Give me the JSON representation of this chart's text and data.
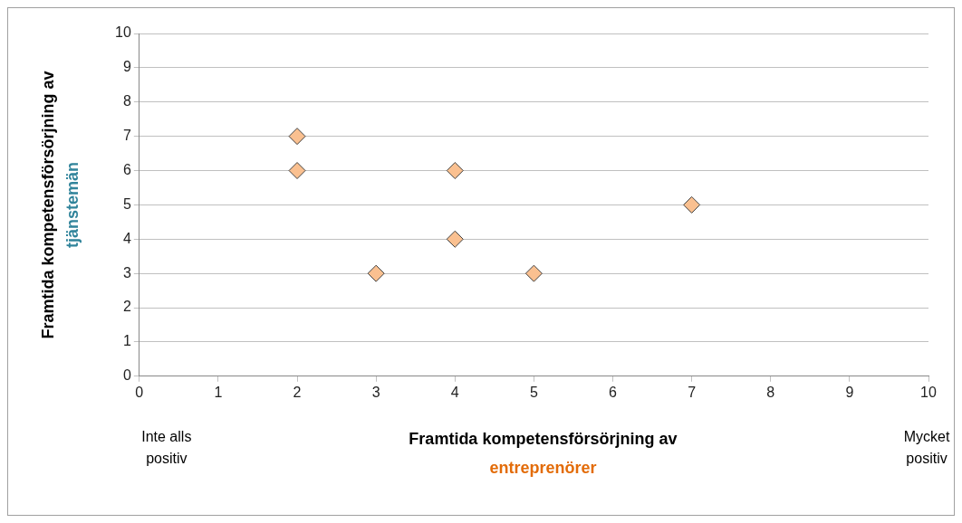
{
  "chart_data": {
    "type": "scatter",
    "xlabel": "Framtida kompetensförsörjning av entreprenörer",
    "ylabel": "Framtida kompetensförsörjning av tjänstemän",
    "annotations": [
      "Inte alls positiv",
      "Mycket positiv"
    ],
    "x": [
      2,
      2,
      4,
      4,
      3,
      5,
      7
    ],
    "series": [
      {
        "color": "#fac090",
        "values": [
          7,
          6,
          6,
          4,
          3,
          3,
          5
        ]
      }
    ],
    "xlim": [
      0,
      10
    ],
    "ylim": [
      0,
      10
    ],
    "xticks": [
      0,
      1,
      2,
      3,
      4,
      5,
      6,
      7,
      8,
      9,
      10
    ],
    "yticks": [
      0,
      1,
      2,
      3,
      4,
      5,
      6,
      7,
      8,
      9,
      10
    ],
    "grid": "y",
    "marker": "diamond"
  }
}
